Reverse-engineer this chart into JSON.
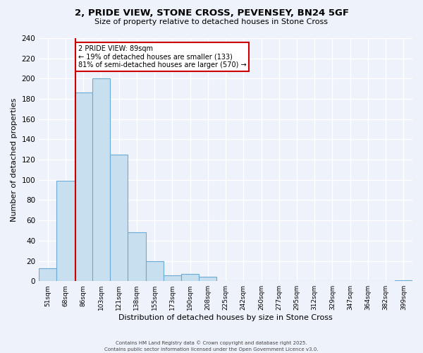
{
  "title_line1": "2, PRIDE VIEW, STONE CROSS, PEVENSEY, BN24 5GF",
  "title_line2": "Size of property relative to detached houses in Stone Cross",
  "xlabel": "Distribution of detached houses by size in Stone Cross",
  "ylabel": "Number of detached properties",
  "bar_labels": [
    "51sqm",
    "68sqm",
    "86sqm",
    "103sqm",
    "121sqm",
    "138sqm",
    "155sqm",
    "173sqm",
    "190sqm",
    "208sqm",
    "225sqm",
    "242sqm",
    "260sqm",
    "277sqm",
    "295sqm",
    "312sqm",
    "329sqm",
    "347sqm",
    "364sqm",
    "382sqm",
    "399sqm"
  ],
  "bar_values": [
    13,
    99,
    186,
    200,
    125,
    48,
    20,
    6,
    7,
    4,
    0,
    0,
    0,
    0,
    0,
    0,
    0,
    0,
    0,
    0,
    1
  ],
  "bar_color": "#c8dff0",
  "bar_edge_color": "#6aaad4",
  "marker_color": "#cc0000",
  "ylim": [
    0,
    240
  ],
  "yticks": [
    0,
    20,
    40,
    60,
    80,
    100,
    120,
    140,
    160,
    180,
    200,
    220,
    240
  ],
  "annotation_title": "2 PRIDE VIEW: 89sqm",
  "annotation_line1": "← 19% of detached houses are smaller (133)",
  "annotation_line2": "81% of semi-detached houses are larger (570) →",
  "footer_line1": "Contains HM Land Registry data © Crown copyright and database right 2025.",
  "footer_line2": "Contains public sector information licensed under the Open Government Licence v3.0.",
  "bg_color": "#eef2fa",
  "grid_color": "#ffffff",
  "annotation_box_color": "#ffffff",
  "annotation_box_edge": "#cc0000"
}
